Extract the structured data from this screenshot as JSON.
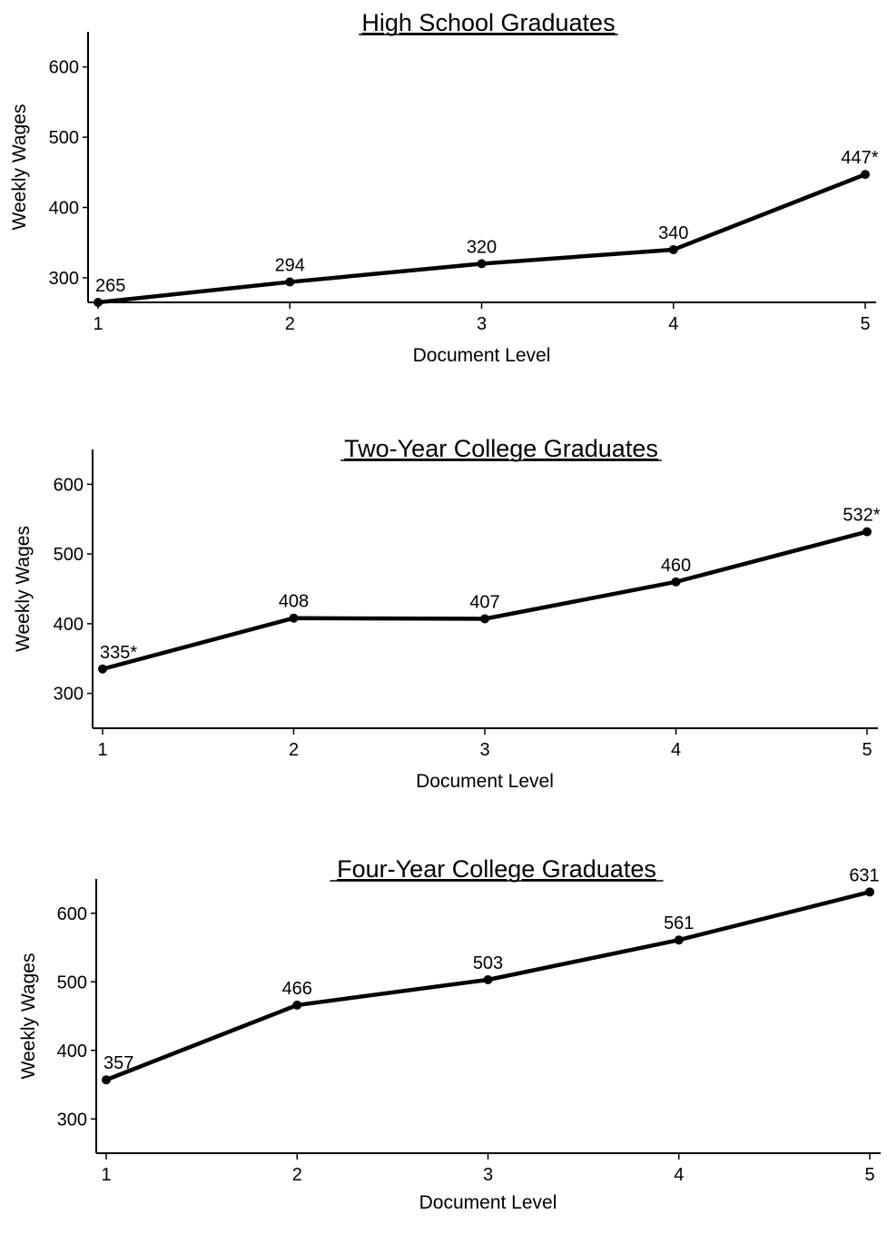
{
  "line_color": "#000000",
  "background_color": "#ffffff",
  "chart_data": [
    {
      "type": "line",
      "title": "High School Graduates",
      "xlabel": "Document Level",
      "ylabel": "Weekly Wages",
      "x": [
        1,
        2,
        3,
        4,
        5
      ],
      "xlim": [
        1,
        5
      ],
      "ylim": [
        265,
        650
      ],
      "yticks": [
        300,
        400,
        500,
        600
      ],
      "grid": false,
      "series": [
        {
          "values": [
            265,
            294,
            320,
            340,
            447
          ],
          "labels": [
            "265",
            "294",
            "320",
            "340",
            "447*"
          ]
        }
      ]
    },
    {
      "type": "line",
      "title": "Two-Year College Graduates",
      "xlabel": "Document Level",
      "ylabel": "Weekly Wages",
      "x": [
        1,
        2,
        3,
        4,
        5
      ],
      "xlim": [
        1,
        5
      ],
      "ylim": [
        250,
        650
      ],
      "yticks": [
        300,
        400,
        500,
        600
      ],
      "grid": false,
      "series": [
        {
          "values": [
            335,
            408,
            407,
            460,
            532
          ],
          "labels": [
            "335*",
            "408",
            "407",
            "460",
            "532*"
          ]
        }
      ]
    },
    {
      "type": "line",
      "title": "Four-Year College Graduates",
      "xlabel": "Document Level",
      "ylabel": "Weekly Wages",
      "x": [
        1,
        2,
        3,
        4,
        5
      ],
      "xlim": [
        1,
        5
      ],
      "ylim": [
        250,
        650
      ],
      "yticks": [
        300,
        400,
        500,
        600
      ],
      "grid": false,
      "series": [
        {
          "values": [
            357,
            466,
            503,
            561,
            631
          ],
          "labels": [
            "357",
            "466",
            "503",
            "561",
            "631"
          ]
        }
      ]
    }
  ]
}
